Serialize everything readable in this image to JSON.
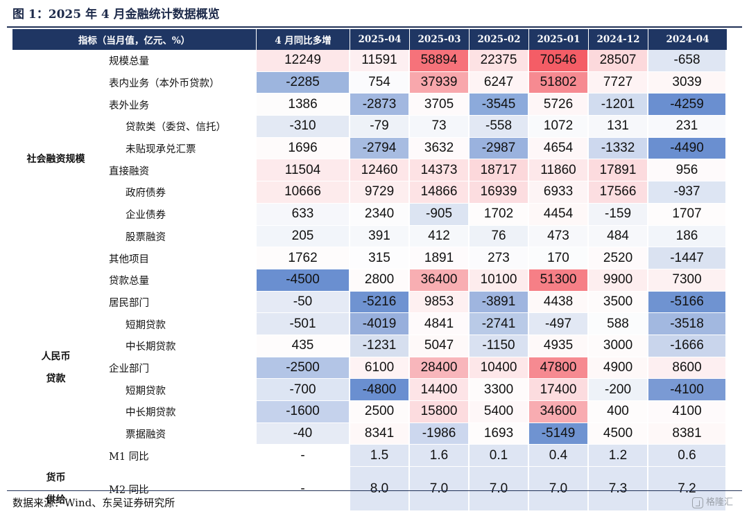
{
  "title": "图 1：2025 年 4 月金融统计数据概览",
  "source": "数据来源：Wind、东吴证券研究所",
  "watermark": "格隆汇",
  "table": {
    "header": [
      "指标（当月值，亿元、%）",
      "4 月同比多增",
      "2025-04",
      "2025-03",
      "2025-02",
      "2025-01",
      "2024-12",
      "2024-04"
    ],
    "groups": [
      {
        "label": "社会融资规模",
        "row_span": 10
      },
      {
        "label": "人民币\n贷款",
        "row_span": 9
      },
      {
        "label": "货币\n供给",
        "row_span": 2
      }
    ],
    "rows": [
      {
        "label": "规模总量",
        "indent": 1,
        "values": [
          "12249",
          "11591",
          "58894",
          "22375",
          "70546",
          "28507",
          "-658"
        ]
      },
      {
        "label": "表内业务（本外币贷款）",
        "indent": 1,
        "values": [
          "-2285",
          "754",
          "37939",
          "6247",
          "51802",
          "7727",
          "3039"
        ]
      },
      {
        "label": "表外业务",
        "indent": 1,
        "values": [
          "1386",
          "-2873",
          "3705",
          "-3545",
          "5726",
          "-1201",
          "-4259"
        ]
      },
      {
        "label": "贷款类（委贷、信托）",
        "indent": 2,
        "values": [
          "-310",
          "-79",
          "73",
          "-558",
          "1072",
          "131",
          "231"
        ]
      },
      {
        "label": "未贴现承兑汇票",
        "indent": 2,
        "values": [
          "1696",
          "-2794",
          "3632",
          "-2987",
          "4654",
          "-1332",
          "-4490"
        ]
      },
      {
        "label": "直接融资",
        "indent": 1,
        "values": [
          "11504",
          "12460",
          "14373",
          "18717",
          "11860",
          "17891",
          "956"
        ]
      },
      {
        "label": "政府债券",
        "indent": 2,
        "values": [
          "10666",
          "9729",
          "14866",
          "16939",
          "6933",
          "17566",
          "-937"
        ]
      },
      {
        "label": "企业债券",
        "indent": 2,
        "values": [
          "633",
          "2340",
          "-905",
          "1702",
          "4454",
          "-159",
          "1707"
        ]
      },
      {
        "label": "股票融资",
        "indent": 2,
        "values": [
          "205",
          "391",
          "412",
          "76",
          "473",
          "484",
          "186"
        ]
      },
      {
        "label": "其他项目",
        "indent": 1,
        "values": [
          "1762",
          "315",
          "1891",
          "273",
          "170",
          "2520",
          "-1447"
        ]
      },
      {
        "label": "贷款总量",
        "indent": 1,
        "values": [
          "-4500",
          "2800",
          "36400",
          "10100",
          "51300",
          "9900",
          "7300"
        ]
      },
      {
        "label": "居民部门",
        "indent": 1,
        "values": [
          "-50",
          "-5216",
          "9853",
          "-3891",
          "4438",
          "3500",
          "-5166"
        ]
      },
      {
        "label": "短期贷款",
        "indent": 2,
        "values": [
          "-501",
          "-4019",
          "4841",
          "-2741",
          "-497",
          "588",
          "-3518"
        ]
      },
      {
        "label": "中长期贷款",
        "indent": 2,
        "values": [
          "435",
          "-1231",
          "5047",
          "-1150",
          "4935",
          "3000",
          "-1666"
        ]
      },
      {
        "label": "企业部门",
        "indent": 1,
        "values": [
          "-2500",
          "6100",
          "28400",
          "10400",
          "47800",
          "4900",
          "8600"
        ]
      },
      {
        "label": "短期贷款",
        "indent": 2,
        "values": [
          "-700",
          "-4800",
          "14400",
          "3300",
          "17400",
          "-200",
          "-4100"
        ]
      },
      {
        "label": "中长期贷款",
        "indent": 2,
        "values": [
          "-1600",
          "2500",
          "15800",
          "5400",
          "34600",
          "400",
          "4100"
        ]
      },
      {
        "label": "票据融资",
        "indent": 2,
        "values": [
          "-40",
          "8341",
          "-1986",
          "1693",
          "-5149",
          "4500",
          "8381"
        ]
      },
      {
        "label": "M1 同比",
        "indent": 0,
        "values": [
          "-",
          "1.5",
          "1.6",
          "0.1",
          "0.4",
          "1.2",
          "0.6"
        ]
      },
      {
        "label": "M2 同比",
        "indent": 0,
        "values": [
          "-",
          "8.0",
          "7.0",
          "7.0",
          "7.0",
          "7.3",
          "7.2"
        ]
      }
    ],
    "cell_colors": [
      [
        "#fde7e9",
        "#fdeff1",
        "#f6727a",
        "#fde2e4",
        "#f45d66",
        "#fcd9dc",
        "#dfe6f3"
      ],
      [
        "#9db5de",
        "#fbfbfd",
        "#f8a7ac",
        "#fef4f5",
        "#f68a91",
        "#fef3f4",
        "#fef7f7"
      ],
      [
        "#fdfcfc",
        "#a2b8e0",
        "#fefafb",
        "#8caadb",
        "#fef6f7",
        "#d1dcef",
        "#6a8fd0"
      ],
      [
        "#e3e9f4",
        "#eef2f8",
        "#f5f7fb",
        "#e2e8f4",
        "#f9fafc",
        "#f7f8fb",
        "#f8f9fc"
      ],
      [
        "#fefbfb",
        "#a7bce1",
        "#fefafb",
        "#9ab2de",
        "#fef7f8",
        "#cdd8ee",
        "#6a8fd0"
      ],
      [
        "#fdeaec",
        "#fde6e8",
        "#fde2e4",
        "#fcd8db",
        "#fde8ea",
        "#fcdbde",
        "#fefafb"
      ],
      [
        "#fdebec",
        "#fdeeef",
        "#fde3e5",
        "#fcdde0",
        "#fdf4f5",
        "#fcdee1",
        "#dde5f3"
      ],
      [
        "#f6f7fb",
        "#fcfcfd",
        "#dce4f2",
        "#fefcfc",
        "#fef8f8",
        "#f2f4f9",
        "#fefcfc"
      ],
      [
        "#f2f5fa",
        "#f6f8fb",
        "#f6f8fb",
        "#eef2f8",
        "#f7f8fb",
        "#f7f8fb",
        "#f2f5fa"
      ],
      [
        "#fefcfc",
        "#fdfdfe",
        "#fefbfc",
        "#fbfbfd",
        "#fbfcfd",
        "#fefafb",
        "#dae2f1"
      ],
      [
        "#6a8fd0",
        "#fefbfb",
        "#f8aeb2",
        "#fdeced",
        "#f67f86",
        "#fdeeef",
        "#fdf1f2"
      ],
      [
        "#e5eaf5",
        "#6f93d1",
        "#fef0f1",
        "#9fb5df",
        "#fef9f9",
        "#fefbfb",
        "#6f93d1"
      ],
      [
        "#e2e8f4",
        "#97afdc",
        "#fefafb",
        "#b9cae7",
        "#e2e8f4",
        "#fbfcfd",
        "#a2b8e0"
      ],
      [
        "#fefcfc",
        "#d6dfef",
        "#fef9f9",
        "#d9e1f1",
        "#fef9f9",
        "#fefbfb",
        "#c9d5ec"
      ],
      [
        "#b3c5e6",
        "#fef3f4",
        "#f8b6bb",
        "#fde7e9",
        "#f68a91",
        "#fef8f8",
        "#fdeff1"
      ],
      [
        "#dde5f3",
        "#6a8fd0",
        "#fde4e7",
        "#fefbfb",
        "#fcdcdf",
        "#eef2f8",
        "#7a9ad4"
      ],
      [
        "#c5d2ec",
        "#fefbfb",
        "#fcdcdf",
        "#fef7f8",
        "#f8acb1",
        "#fefcfc",
        "#fefafb"
      ],
      [
        "#e6ebf5",
        "#fef8f8",
        "#ccd7ee",
        "#fefcfc",
        "#6f93d1",
        "#fefbfb",
        "#fef8f8"
      ],
      [
        "#ffffff",
        "#dee5f3",
        "#dee5f3",
        "#dee5f3",
        "#dee5f3",
        "#dee5f3",
        "#dee5f3"
      ],
      [
        "#ffffff",
        "#dee5f3",
        "#dee5f3",
        "#dee5f3",
        "#dee5f3",
        "#dee5f3",
        "#dee5f3"
      ]
    ]
  }
}
